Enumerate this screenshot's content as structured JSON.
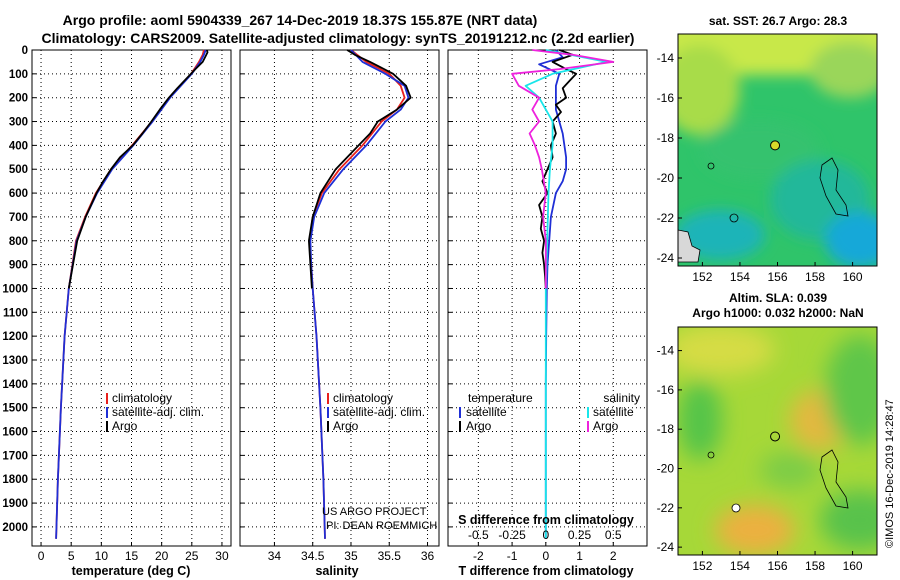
{
  "title_line1": "Argo profile: aoml 5904339_267 14-Dec-2019 18.37S 155.87E (NRT data)",
  "title_line2": "Climatology: CARS2009. Satellite-adjusted climatology: synTS_20191212.nc (2.2d earlier)",
  "colors": {
    "climatology": "#e8201c",
    "satellite": "#1f2fd6",
    "argo": "#000000",
    "sat_salinity": "#18e6ea",
    "argo_salinity": "#ee22dd"
  },
  "credit_line1": "US ARGO PROJECT",
  "credit_line2": "PI: DEAN ROEMMICH",
  "side_label": "©IMOS 16-Dec-2019 14:28:47",
  "chart_data": [
    {
      "type": "line",
      "id": "temperature",
      "xlabel": "temperature (deg C)",
      "xlim": [
        -1.5,
        31.5
      ],
      "ylim": [
        2080,
        0
      ],
      "xticks": [
        0,
        5,
        10,
        15,
        20,
        25,
        30
      ],
      "yticks": [
        0,
        100,
        200,
        300,
        400,
        500,
        600,
        700,
        800,
        900,
        1000,
        1100,
        1200,
        1300,
        1400,
        1500,
        1600,
        1700,
        1800,
        1900,
        2000
      ],
      "grid": "dotted",
      "legend": [
        "climatology",
        "satellite-adj. clim.",
        "Argo"
      ],
      "legend_position": "lower-right",
      "series": [
        {
          "name": "climatology",
          "color": "#e8201c",
          "depth": [
            0,
            20,
            50,
            100,
            150,
            200,
            300,
            400,
            500,
            600,
            700,
            800,
            1000,
            1200,
            1500,
            1800,
            2050
          ],
          "values": [
            27.0,
            26.8,
            26.2,
            24.9,
            23.1,
            21.3,
            18.4,
            15.1,
            11.6,
            9.1,
            7.3,
            5.8,
            4.6,
            3.9,
            3.3,
            2.8,
            2.5
          ]
        },
        {
          "name": "satellite-adj. clim.",
          "color": "#1f2fd6",
          "depth": [
            0,
            20,
            50,
            100,
            150,
            200,
            300,
            400,
            500,
            600,
            700,
            800,
            1000,
            1200,
            1500,
            1800,
            2050
          ],
          "values": [
            27.3,
            27.0,
            26.4,
            25.0,
            23.2,
            21.4,
            18.5,
            15.3,
            11.8,
            9.3,
            7.4,
            5.9,
            4.6,
            3.9,
            3.3,
            2.8,
            2.5
          ]
        },
        {
          "name": "Argo",
          "color": "#000000",
          "depth": [
            0,
            10,
            25,
            50,
            80,
            120,
            160,
            200,
            250,
            300,
            350,
            400,
            450,
            500,
            550,
            600,
            650,
            700,
            800,
            900,
            1000
          ],
          "values": [
            27.5,
            27.6,
            27.3,
            26.8,
            25.6,
            24.1,
            22.6,
            21.2,
            19.7,
            18.3,
            16.8,
            15.2,
            13.1,
            11.6,
            10.3,
            9.2,
            8.3,
            7.4,
            6.0,
            5.3,
            4.6
          ]
        }
      ]
    },
    {
      "type": "line",
      "id": "salinity",
      "xlabel": "salinity",
      "xlim": [
        33.55,
        36.15
      ],
      "ylim": [
        2080,
        0
      ],
      "xticks": [
        34,
        34.5,
        35,
        35.5,
        36
      ],
      "grid": "dotted",
      "legend": [
        "climatology",
        "satellite-adj. clim.",
        "Argo"
      ],
      "legend_position": "lower-right",
      "series": [
        {
          "name": "climatology",
          "color": "#e8201c",
          "depth": [
            0,
            50,
            100,
            150,
            200,
            250,
            300,
            400,
            500,
            600,
            700,
            800,
            900,
            1000,
            1200,
            1500,
            1800,
            2050
          ],
          "values": [
            35.0,
            35.2,
            35.5,
            35.65,
            35.7,
            35.6,
            35.4,
            35.15,
            34.85,
            34.62,
            34.5,
            34.46,
            34.48,
            34.5,
            34.55,
            34.6,
            34.64,
            34.66
          ]
        },
        {
          "name": "satellite-adj. clim.",
          "color": "#1f2fd6",
          "depth": [
            0,
            50,
            100,
            150,
            200,
            250,
            300,
            400,
            500,
            600,
            700,
            800,
            900,
            1000,
            1200,
            1500,
            1800,
            2050
          ],
          "values": [
            35.0,
            35.15,
            35.45,
            35.7,
            35.75,
            35.65,
            35.45,
            35.2,
            34.9,
            34.65,
            34.52,
            34.47,
            34.48,
            34.5,
            34.55,
            34.6,
            34.64,
            34.66
          ]
        },
        {
          "name": "Argo",
          "color": "#000000",
          "depth": [
            0,
            20,
            50,
            100,
            150,
            200,
            250,
            300,
            350,
            400,
            450,
            500,
            600,
            700,
            800,
            900,
            1000
          ],
          "values": [
            34.95,
            35.05,
            35.25,
            35.55,
            35.72,
            35.78,
            35.6,
            35.35,
            35.25,
            35.1,
            34.95,
            34.8,
            34.6,
            34.5,
            34.45,
            34.47,
            34.49
          ]
        }
      ]
    },
    {
      "type": "line",
      "id": "difference",
      "xlabel": "T difference from climatology",
      "xlabel2": "S difference from climatology",
      "xlim": [
        -2.9,
        3.0
      ],
      "ylim": [
        2080,
        0
      ],
      "xticks": [
        -2,
        -1,
        0,
        1,
        2
      ],
      "xticks2": [
        -0.5,
        -0.25,
        0,
        0.25,
        0.5
      ],
      "xticks2_labels": [
        "-0.5",
        "-0.25",
        "0",
        "0.25",
        "0.5"
      ],
      "grid": "dotted",
      "legend_temperature_title": "temperature",
      "legend_temperature": [
        "satellite",
        "Argo"
      ],
      "legend_salinity_title": "salinity",
      "legend_salinity": [
        "satellite",
        "Argo"
      ],
      "series": [
        {
          "name": "temperature satellite",
          "color": "#1f2fd6",
          "depth": [
            0,
            30,
            60,
            100,
            150,
            200,
            250,
            300,
            350,
            400,
            450,
            500,
            550,
            600,
            700,
            800,
            900,
            1000,
            1100,
            1200,
            1400,
            1600,
            1800,
            2050
          ],
          "values": [
            0.3,
            0.5,
            -0.2,
            0.4,
            0.3,
            0.3,
            0.3,
            0.4,
            0.5,
            0.55,
            0.6,
            0.6,
            0.5,
            0.3,
            0.15,
            0.1,
            0.05,
            0.03,
            0.02,
            0.01,
            0.0,
            0.0,
            0.0,
            0.0
          ]
        },
        {
          "name": "temperature Argo",
          "color": "#000000",
          "depth": [
            0,
            20,
            50,
            80,
            100,
            130,
            160,
            200,
            230,
            260,
            300,
            350,
            400,
            450,
            500,
            550,
            600,
            650,
            700,
            750,
            800,
            850,
            900,
            950,
            1000
          ],
          "values": [
            0.4,
            0.8,
            0.2,
            0.6,
            0.9,
            0.7,
            0.5,
            0.6,
            0.3,
            0.45,
            0.2,
            0.3,
            0.15,
            0.2,
            0.05,
            -0.1,
            0.05,
            -0.2,
            -0.1,
            -0.15,
            -0.05,
            -0.1,
            -0.05,
            -0.02,
            0.0
          ]
        },
        {
          "name": "salinity satellite",
          "color": "#18e6ea",
          "depth": [
            0,
            50,
            100,
            150,
            200,
            300,
            400,
            500,
            600,
            800,
            1000,
            1200,
            1500,
            1800,
            2050
          ],
          "values": [
            0.0,
            0.45,
            0.05,
            -0.15,
            -0.05,
            0.05,
            0.05,
            0.03,
            0.02,
            0.01,
            0.0,
            0.0,
            0.0,
            0.0,
            0.0
          ]
        },
        {
          "name": "salinity Argo",
          "color": "#ee22dd",
          "depth": [
            0,
            20,
            50,
            80,
            100,
            150,
            200,
            250,
            300,
            350,
            400,
            450,
            500,
            600,
            700,
            800,
            900,
            1000
          ],
          "values": [
            -0.1,
            0.2,
            0.5,
            0.1,
            -0.25,
            -0.2,
            -0.05,
            -0.1,
            -0.05,
            -0.12,
            -0.08,
            -0.05,
            -0.03,
            0.0,
            -0.02,
            0.0,
            0.0,
            0.0
          ]
        }
      ]
    },
    {
      "type": "heatmap",
      "id": "sst_map",
      "title": "sat. SST: 26.7 Argo: 28.3",
      "xticks": [
        152,
        154,
        156,
        158,
        160
      ],
      "yticks": [
        -14,
        -16,
        -18,
        -20,
        -22,
        -24
      ],
      "xlim": [
        150.7,
        161.3
      ],
      "ylim": [
        -24.4,
        -12.8
      ],
      "argo_position": [
        155.87,
        -18.37
      ]
    },
    {
      "type": "heatmap",
      "id": "sla_map",
      "title_line1": "Altim. SLA: 0.039",
      "title_line2": "Argo h1000: 0.032 h2000: NaN",
      "xticks": [
        152,
        154,
        156,
        158,
        160
      ],
      "yticks": [
        -14,
        -16,
        -18,
        -20,
        -22,
        -24
      ],
      "xlim": [
        150.7,
        161.3
      ],
      "ylim": [
        -24.4,
        -12.8
      ],
      "argo_position": [
        155.87,
        -18.37
      ]
    }
  ]
}
